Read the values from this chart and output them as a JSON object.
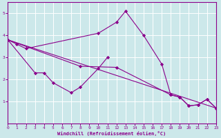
{
  "xlabel": "Windchill (Refroidissement éolien,°C)",
  "bg_color": "#cce8ea",
  "line_color": "#8b008b",
  "grid_color": "#ffffff",
  "xlim": [
    0,
    23
  ],
  "ylim": [
    0,
    5.5
  ],
  "xticks": [
    0,
    1,
    2,
    3,
    4,
    5,
    6,
    7,
    8,
    9,
    10,
    11,
    12,
    13,
    14,
    15,
    16,
    17,
    18,
    19,
    20,
    21,
    22,
    23
  ],
  "yticks": [
    1,
    2,
    3,
    4,
    5
  ],
  "series": [
    {
      "x": [
        0,
        1,
        2,
        10,
        12,
        13,
        15,
        17,
        18,
        19,
        20,
        21,
        22,
        23
      ],
      "y": [
        3.8,
        3.6,
        3.4,
        4.1,
        4.6,
        5.1,
        4.0,
        2.7,
        1.3,
        1.2,
        0.8,
        0.85,
        1.1,
        0.7
      ]
    },
    {
      "comment": "middle zigzag line: 0->3->4->5->7->8->10->11",
      "x": [
        0,
        3,
        4,
        5,
        7,
        8,
        10,
        11
      ],
      "y": [
        3.8,
        2.3,
        2.3,
        1.85,
        1.4,
        1.65,
        2.5,
        3.0
      ]
    },
    {
      "x": [
        0,
        8,
        12,
        18,
        19,
        20,
        21,
        22,
        23
      ],
      "y": [
        3.8,
        2.6,
        2.55,
        1.3,
        1.2,
        0.8,
        0.85,
        1.1,
        0.7
      ]
    },
    {
      "x": [
        0,
        23
      ],
      "y": [
        3.8,
        0.7
      ]
    }
  ]
}
